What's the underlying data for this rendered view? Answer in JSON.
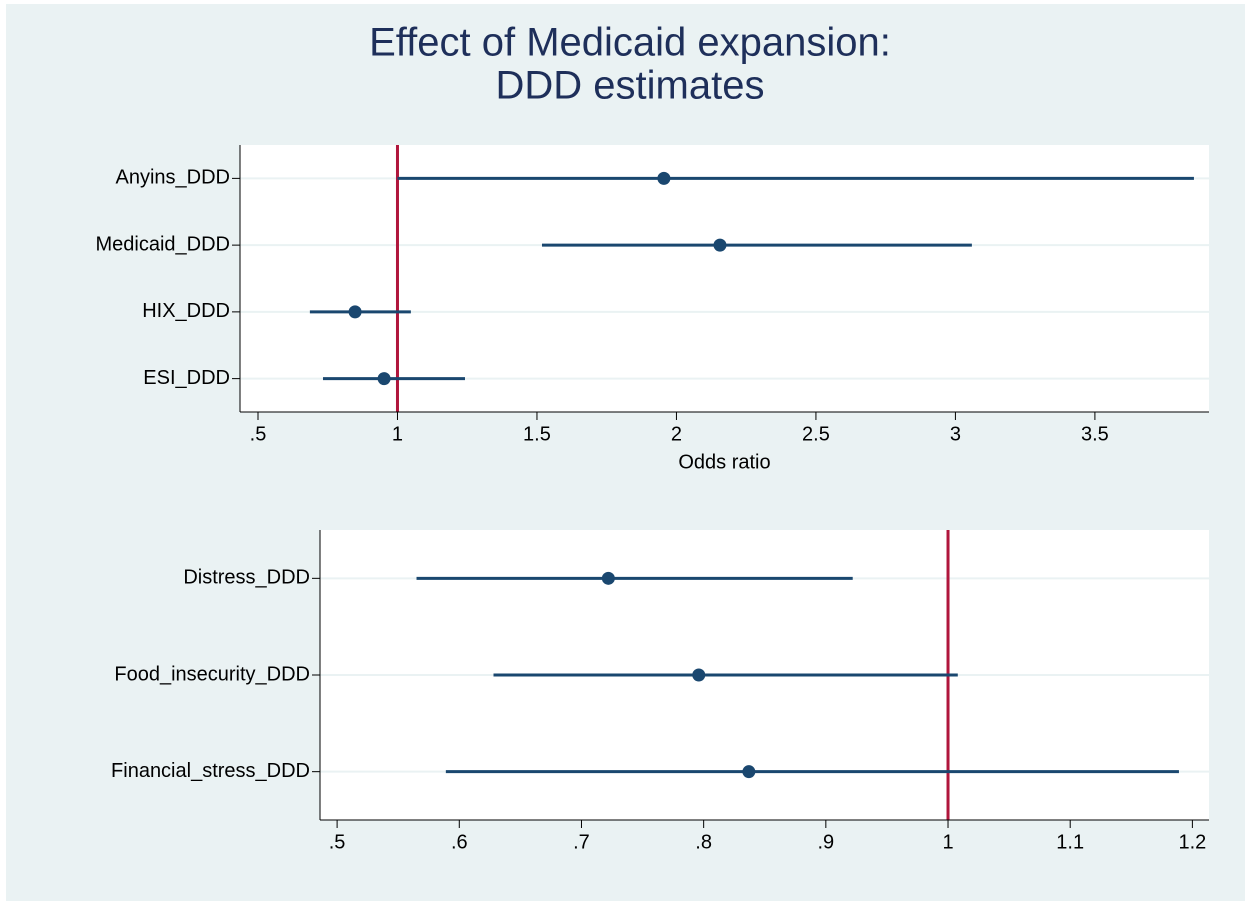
{
  "chart_data": [
    {
      "type": "errorbar",
      "title": [
        "Effect of Medicaid expansion:",
        "DDD estimates"
      ],
      "xlabel": "Odds ratio",
      "categories": [
        "Anyins_DDD",
        "Medicaid_DDD",
        "HIX_DDD",
        "ESI_DDD"
      ],
      "values": [
        1.955,
        2.156,
        0.848,
        0.952
      ],
      "ci_low": [
        1.0,
        1.518,
        0.686,
        0.733
      ],
      "ci_high": [
        3.855,
        3.059,
        1.048,
        1.242
      ],
      "color": "#1a476f",
      "refline": 1,
      "refline_color": "#b0163c",
      "grid": true,
      "xlim": [
        0.4355,
        3.909
      ],
      "xticks": [
        {
          "value": 0.5,
          "label": ".5"
        },
        1,
        1.5,
        2,
        2.5,
        3,
        3.5
      ]
    },
    {
      "type": "errorbar",
      "categories": [
        "Distress_DDD",
        "Food_insecurity_DDD",
        "Financial_stress_DDD"
      ],
      "values": [
        0.722,
        0.796,
        0.837
      ],
      "ci_low": [
        0.565,
        0.628,
        0.589
      ],
      "ci_high": [
        0.922,
        1.008,
        1.189
      ],
      "color": "#1a476f",
      "refline": 1,
      "refline_color": "#b0163c",
      "grid": true,
      "xlim": [
        0.486,
        1.2136
      ],
      "xticks": [
        {
          "value": 0.5,
          "label": ".5"
        },
        {
          "value": 0.6,
          "label": ".6"
        },
        {
          "value": 0.7,
          "label": ".7"
        },
        {
          "value": 0.8,
          "label": ".8"
        },
        {
          "value": 0.9,
          "label": ".9"
        },
        1,
        1.1,
        1.2
      ]
    }
  ]
}
